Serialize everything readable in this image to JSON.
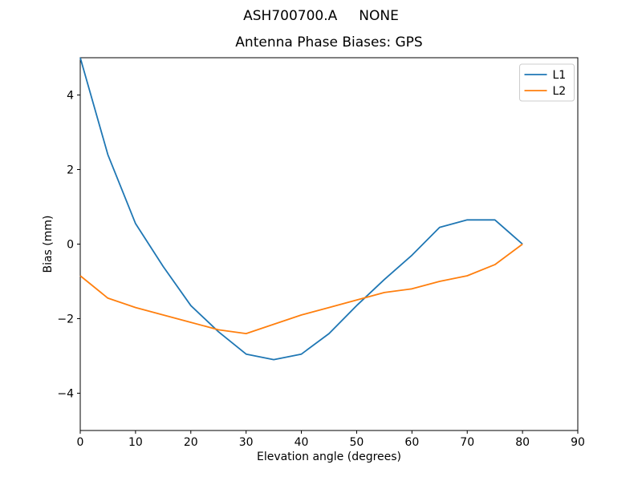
{
  "chart_data": {
    "type": "line",
    "suptitle": "ASH700700.A     NONE",
    "title": "Antenna Phase Biases: GPS",
    "xlabel": "Elevation angle (degrees)",
    "ylabel": "Bias (mm)",
    "xlim": [
      0,
      90
    ],
    "ylim": [
      -5,
      5
    ],
    "xticks": [
      0,
      10,
      20,
      30,
      40,
      50,
      60,
      70,
      80,
      90
    ],
    "yticks": [
      -4,
      -2,
      0,
      2,
      4
    ],
    "grid": false,
    "legend": {
      "position": "upper right",
      "entries": [
        "L1",
        "L2"
      ]
    },
    "x": [
      0,
      5,
      10,
      15,
      20,
      25,
      30,
      35,
      40,
      45,
      50,
      55,
      60,
      65,
      70,
      75,
      80
    ],
    "series": [
      {
        "name": "L1",
        "color": "#1f77b4",
        "values": [
          5.0,
          2.4,
          0.55,
          -0.6,
          -1.65,
          -2.35,
          -2.95,
          -3.1,
          -2.95,
          -2.4,
          -1.65,
          -0.95,
          -0.3,
          0.45,
          0.65,
          0.65,
          0.0
        ]
      },
      {
        "name": "L2",
        "color": "#ff7f0e",
        "values": [
          -0.85,
          -1.45,
          -1.7,
          -1.9,
          -2.1,
          -2.3,
          -2.4,
          -2.15,
          -1.9,
          -1.7,
          -1.5,
          -1.3,
          -1.2,
          -1.0,
          -0.85,
          -0.55,
          0.0
        ]
      }
    ],
    "line_width": 1.8,
    "axis_color": "#000000",
    "legend_border_color": "#cccccc"
  }
}
